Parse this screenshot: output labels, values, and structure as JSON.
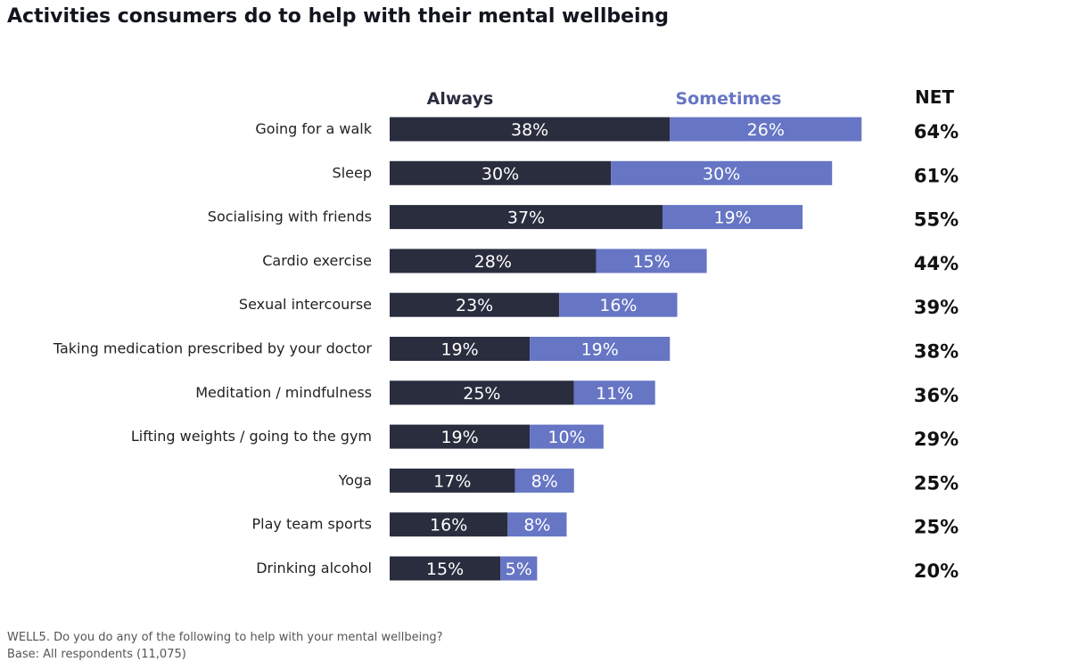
{
  "title": "Activities consumers do to help with their mental wellbeing",
  "footnotes": {
    "question": "WELL5. Do you do any of the following to help with your mental wellbeing?",
    "base": "Base: All respondents (11,075)"
  },
  "colors": {
    "always": "#292d3e",
    "sometimes": "#6675c4",
    "sometimes_text": "#6675c4",
    "label_text": "#222222",
    "net_text": "#111111"
  },
  "chart_data": {
    "type": "bar",
    "orientation": "horizontal",
    "stacked": true,
    "title": "Activities consumers do to help with their mental wellbeing",
    "legend": [
      "Always",
      "Sometimes"
    ],
    "legend_position": "top",
    "net_header": "NET",
    "categories": [
      "Going for a walk",
      "Sleep",
      "Socialising with friends",
      "Cardio exercise",
      "Sexual intercourse",
      "Taking medication prescribed by your doctor",
      "Meditation / mindfulness",
      "Lifting weights / going to the gym",
      "Yoga",
      "Play team sports",
      "Drinking alcohol"
    ],
    "series": [
      {
        "name": "Always",
        "values": [
          38,
          30,
          37,
          28,
          23,
          19,
          25,
          19,
          17,
          16,
          15
        ]
      },
      {
        "name": "Sometimes",
        "values": [
          26,
          30,
          19,
          15,
          16,
          19,
          11,
          10,
          8,
          8,
          5
        ]
      }
    ],
    "net": [
      64,
      61,
      55,
      44,
      39,
      38,
      36,
      29,
      25,
      25,
      20
    ],
    "unit": "%"
  }
}
